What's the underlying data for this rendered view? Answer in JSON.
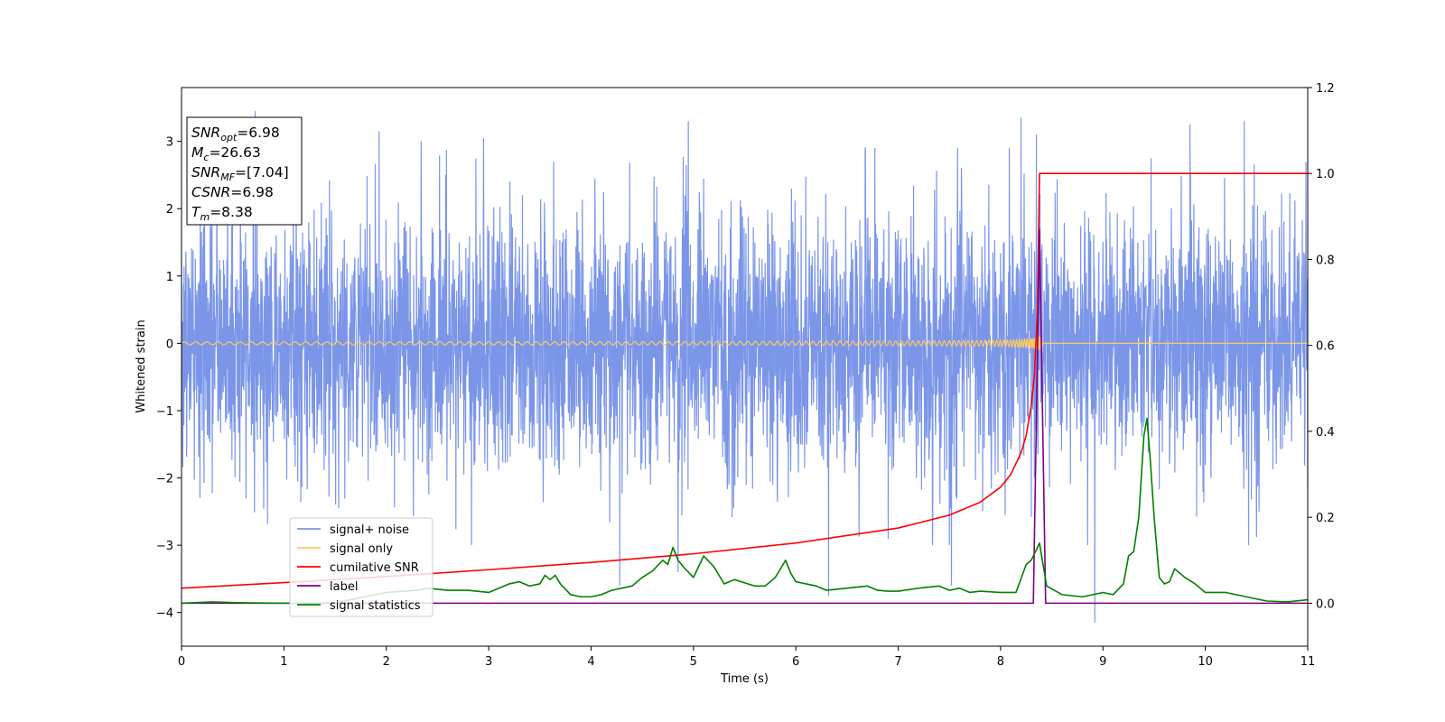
{
  "chart_data": {
    "type": "line",
    "xlabel": "Time (s)",
    "ylabel": "Whitened strain",
    "xlim": [
      0,
      11
    ],
    "ylim": [
      -4.5,
      3.8
    ],
    "y2lim": [
      -0.1,
      1.2
    ],
    "x_ticks": [
      0,
      1,
      2,
      3,
      4,
      5,
      6,
      7,
      8,
      9,
      10,
      11
    ],
    "y_ticks": [
      -4,
      -3,
      -2,
      -1,
      0,
      1,
      2,
      3
    ],
    "y2_ticks": [
      "0.0",
      "0.2",
      "0.4",
      "0.6",
      "0.8",
      "1.0",
      "1.2"
    ],
    "grid": false,
    "legend_position": "lower-left",
    "annotation": [
      {
        "var": "SNR",
        "sub": "opt",
        "value": "=6.98"
      },
      {
        "var": "M",
        "sub": "c",
        "value": "=26.63"
      },
      {
        "var": "SNR",
        "sub": "MF",
        "value": "=[7.04]"
      },
      {
        "var": "CSNR",
        "sub": "",
        "value": "=6.98"
      },
      {
        "var": "T",
        "sub": "m",
        "value": "=8.38"
      }
    ],
    "series": [
      {
        "name": "signal+ noise",
        "color": "#7b96e8",
        "axis": "left",
        "kind": "noise",
        "std": 0.95,
        "x_range": [
          0,
          11
        ],
        "peaks": [
          [
            0.72,
            3.45
          ],
          [
            1.12,
            2.95
          ],
          [
            1.93,
            3.15
          ],
          [
            2.34,
            3.0
          ],
          [
            2.95,
            3.05
          ],
          [
            4.28,
            -3.6
          ],
          [
            4.85,
            -3.4
          ],
          [
            4.95,
            3.3
          ],
          [
            6.32,
            -3.75
          ],
          [
            7.52,
            -3.6
          ],
          [
            8.2,
            3.35
          ],
          [
            8.35,
            3.1
          ],
          [
            8.92,
            -4.15
          ],
          [
            9.85,
            3.25
          ],
          [
            10.38,
            3.3
          ],
          [
            0.45,
            2.75
          ],
          [
            6.68,
            2.9
          ],
          [
            9.47,
            2.75
          ]
        ]
      },
      {
        "name": "signal only",
        "color": "#ffc966",
        "axis": "left",
        "kind": "chirp",
        "t_merge": 8.38,
        "x_range": [
          0,
          11
        ]
      },
      {
        "name": "cumilative SNR",
        "color": "#ff0000",
        "axis": "right",
        "x": [
          0,
          1,
          2,
          3,
          4,
          5,
          6,
          7,
          7.5,
          7.8,
          8.0,
          8.1,
          8.2,
          8.25,
          8.3,
          8.33,
          8.36,
          8.38,
          8.4,
          11
        ],
        "y": [
          0.035,
          0.048,
          0.062,
          0.078,
          0.095,
          0.115,
          0.14,
          0.175,
          0.205,
          0.235,
          0.27,
          0.3,
          0.35,
          0.39,
          0.46,
          0.53,
          0.68,
          1.0,
          1.0,
          1.0
        ]
      },
      {
        "name": "label",
        "color": "#800080",
        "axis": "right",
        "x": [
          0,
          8.32,
          8.38,
          8.44,
          11
        ],
        "y": [
          0.0,
          0.0,
          0.87,
          0.0,
          0.0
        ]
      },
      {
        "name": "signal statistics",
        "color": "#008000",
        "axis": "right",
        "x": [
          0,
          0.3,
          0.6,
          1.0,
          1.5,
          2.0,
          2.3,
          2.4,
          2.6,
          2.8,
          3.0,
          3.2,
          3.3,
          3.4,
          3.5,
          3.55,
          3.6,
          3.65,
          3.7,
          3.8,
          3.9,
          4.0,
          4.1,
          4.2,
          4.3,
          4.4,
          4.5,
          4.6,
          4.7,
          4.75,
          4.8,
          4.85,
          4.9,
          5.0,
          5.1,
          5.2,
          5.3,
          5.4,
          5.6,
          5.7,
          5.8,
          5.9,
          5.95,
          6.0,
          6.1,
          6.2,
          6.3,
          6.5,
          6.7,
          6.8,
          6.9,
          7.0,
          7.2,
          7.4,
          7.5,
          7.6,
          7.7,
          7.8,
          8.0,
          8.15,
          8.25,
          8.3,
          8.38,
          8.45,
          8.6,
          8.8,
          9.0,
          9.1,
          9.2,
          9.25,
          9.3,
          9.35,
          9.4,
          9.43,
          9.46,
          9.5,
          9.55,
          9.6,
          9.65,
          9.7,
          9.8,
          9.9,
          10.0,
          10.2,
          10.4,
          10.6,
          10.8,
          11.0
        ],
        "y": [
          0.0,
          0.003,
          0.001,
          0.0,
          0.001,
          0.025,
          0.03,
          0.035,
          0.03,
          0.03,
          0.025,
          0.045,
          0.05,
          0.04,
          0.045,
          0.065,
          0.055,
          0.065,
          0.045,
          0.02,
          0.015,
          0.015,
          0.02,
          0.03,
          0.035,
          0.04,
          0.06,
          0.075,
          0.1,
          0.09,
          0.13,
          0.1,
          0.085,
          0.06,
          0.11,
          0.085,
          0.045,
          0.055,
          0.04,
          0.04,
          0.06,
          0.1,
          0.07,
          0.05,
          0.045,
          0.04,
          0.03,
          0.035,
          0.04,
          0.03,
          0.028,
          0.028,
          0.035,
          0.04,
          0.03,
          0.035,
          0.025,
          0.028,
          0.025,
          0.025,
          0.09,
          0.1,
          0.14,
          0.04,
          0.02,
          0.015,
          0.025,
          0.02,
          0.045,
          0.11,
          0.12,
          0.2,
          0.39,
          0.43,
          0.34,
          0.2,
          0.06,
          0.045,
          0.05,
          0.08,
          0.06,
          0.045,
          0.025,
          0.025,
          0.015,
          0.005,
          0.003,
          0.008
        ]
      }
    ]
  }
}
